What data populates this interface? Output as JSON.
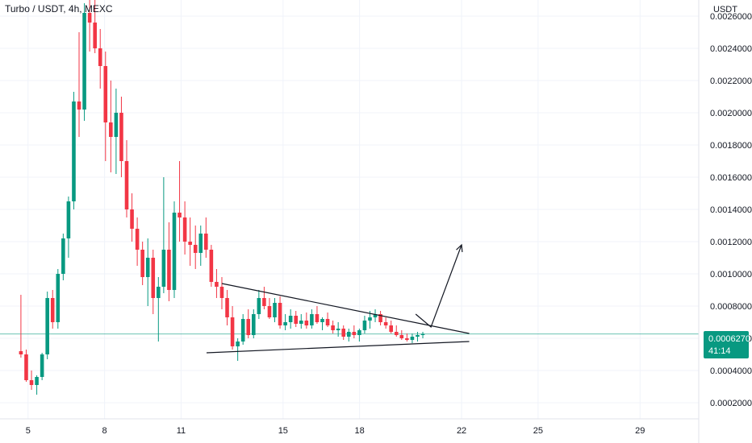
{
  "header": {
    "title": "Turbo / USDT, 4h, MEXC",
    "unit": "USDT"
  },
  "current": {
    "price": "0.0006270",
    "countdown": "41:14"
  },
  "colors": {
    "up": "#089981",
    "down": "#f23645",
    "grid": "#f0f3fa",
    "drawing": "#131722",
    "price_line": "#089981"
  },
  "chart_data": {
    "type": "candlestick",
    "title": "Turbo / USDT, 4h, MEXC",
    "ylabel": "USDT",
    "ylim": [
      0.0001,
      0.0027
    ],
    "xlim": [
      3.9,
      31.3
    ],
    "x_ticks": [
      {
        "day": 5,
        "label": "5"
      },
      {
        "day": 8,
        "label": "8"
      },
      {
        "day": 11,
        "label": "11"
      },
      {
        "day": 15,
        "label": "15"
      },
      {
        "day": 18,
        "label": "18"
      },
      {
        "day": 22,
        "label": "22"
      },
      {
        "day": 25,
        "label": "25"
      },
      {
        "day": 29,
        "label": "29"
      }
    ],
    "y_ticks": [
      "0.0002000",
      "0.0004000",
      "0.0006000",
      "0.0008000",
      "0.0010000",
      "0.0012000",
      "0.0014000",
      "0.0016000",
      "0.0018000",
      "0.0020000",
      "0.0022000",
      "0.0024000",
      "0.0026000"
    ],
    "y_tick_values": [
      0.0002,
      0.0004,
      0.0006,
      0.0008,
      0.001,
      0.0012,
      0.0014,
      0.0016,
      0.0018,
      0.002,
      0.0022,
      0.0024,
      0.0026
    ],
    "candles": [
      [
        0.00052,
        0.00087,
        0.00048,
        0.0005
      ],
      [
        0.0005,
        0.00053,
        0.00033,
        0.00034
      ],
      [
        0.00034,
        0.0004,
        0.00028,
        0.00031
      ],
      [
        0.00031,
        0.00037,
        0.00025,
        0.00036
      ],
      [
        0.00036,
        0.00051,
        0.00034,
        0.0005
      ],
      [
        0.0005,
        0.00089,
        0.00047,
        0.00085
      ],
      [
        0.00085,
        0.0009,
        0.00066,
        0.0007
      ],
      [
        0.0007,
        0.00103,
        0.00066,
        0.001
      ],
      [
        0.001,
        0.00125,
        0.00096,
        0.00122
      ],
      [
        0.00122,
        0.00148,
        0.0011,
        0.00145
      ],
      [
        0.00145,
        0.00213,
        0.0014,
        0.00207
      ],
      [
        0.00207,
        0.0025,
        0.00185,
        0.00202
      ],
      [
        0.00202,
        0.00268,
        0.00195,
        0.00262
      ],
      [
        0.00262,
        0.00275,
        0.00238,
        0.00256
      ],
      [
        0.00256,
        0.0027,
        0.00237,
        0.0024
      ],
      [
        0.0024,
        0.00252,
        0.00215,
        0.00229
      ],
      [
        0.00229,
        0.00238,
        0.0017,
        0.00194
      ],
      [
        0.00194,
        0.0022,
        0.00163,
        0.00185
      ],
      [
        0.00185,
        0.00215,
        0.00162,
        0.002
      ],
      [
        0.002,
        0.0021,
        0.0016,
        0.0017
      ],
      [
        0.0017,
        0.00183,
        0.00135,
        0.0014
      ],
      [
        0.0014,
        0.0015,
        0.0012,
        0.00128
      ],
      [
        0.00128,
        0.00135,
        0.00105,
        0.00115
      ],
      [
        0.00115,
        0.0012,
        0.00093,
        0.00098
      ],
      [
        0.00098,
        0.00122,
        0.0008,
        0.0011
      ],
      [
        0.0011,
        0.00115,
        0.00075,
        0.00085
      ],
      [
        0.00085,
        0.00098,
        0.00058,
        0.00092
      ],
      [
        0.00092,
        0.0016,
        0.00088,
        0.00115
      ],
      [
        0.00115,
        0.00132,
        0.00083,
        0.0009
      ],
      [
        0.0009,
        0.00145,
        0.00085,
        0.00138
      ],
      [
        0.00138,
        0.0017,
        0.0012,
        0.00135
      ],
      [
        0.00135,
        0.00145,
        0.00112,
        0.0012
      ],
      [
        0.0012,
        0.00135,
        0.00105,
        0.00118
      ],
      [
        0.00118,
        0.0013,
        0.00103,
        0.00113
      ],
      [
        0.00113,
        0.0013,
        0.00105,
        0.00125
      ],
      [
        0.00125,
        0.00135,
        0.0011,
        0.00115
      ],
      [
        0.00115,
        0.00118,
        0.00092,
        0.00095
      ],
      [
        0.00095,
        0.00103,
        0.00085,
        0.00092
      ],
      [
        0.00092,
        0.00098,
        0.00078,
        0.00085
      ],
      [
        0.00085,
        0.0009,
        0.00068,
        0.00073
      ],
      [
        0.00073,
        0.0008,
        0.00053,
        0.00055
      ],
      [
        0.00055,
        0.0006,
        0.00046,
        0.00058
      ],
      [
        0.00058,
        0.00075,
        0.00056,
        0.00072
      ],
      [
        0.00072,
        0.00078,
        0.0006,
        0.00062
      ],
      [
        0.00062,
        0.00078,
        0.0006,
        0.00075
      ],
      [
        0.00075,
        0.0009,
        0.00072,
        0.00085
      ],
      [
        0.00085,
        0.00092,
        0.00078,
        0.0008
      ],
      [
        0.0008,
        0.00085,
        0.00072,
        0.00073
      ],
      [
        0.00073,
        0.00085,
        0.0007,
        0.00082
      ],
      [
        0.00082,
        0.00086,
        0.00066,
        0.00068
      ],
      [
        0.00068,
        0.00075,
        0.00065,
        0.0007
      ],
      [
        0.0007,
        0.00078,
        0.00066,
        0.00074
      ],
      [
        0.00074,
        0.00077,
        0.00067,
        0.00069
      ],
      [
        0.00069,
        0.00075,
        0.00066,
        0.00071
      ],
      [
        0.00071,
        0.00076,
        0.00066,
        0.00068
      ],
      [
        0.00068,
        0.00078,
        0.00066,
        0.00075
      ],
      [
        0.00075,
        0.0008,
        0.00069,
        0.0007
      ],
      [
        0.0007,
        0.00073,
        0.00065,
        0.00072
      ],
      [
        0.00072,
        0.00076,
        0.00067,
        0.00068
      ],
      [
        0.00068,
        0.00071,
        0.00063,
        0.00065
      ],
      [
        0.00065,
        0.0007,
        0.00061,
        0.00066
      ],
      [
        0.00066,
        0.00068,
        0.00059,
        0.00061
      ],
      [
        0.00061,
        0.00066,
        0.00058,
        0.00064
      ],
      [
        0.00064,
        0.00068,
        0.0006,
        0.00062
      ],
      [
        0.00062,
        0.00066,
        0.00058,
        0.00065
      ],
      [
        0.00065,
        0.00074,
        0.00063,
        0.00071
      ],
      [
        0.00071,
        0.00077,
        0.00066,
        0.00073
      ],
      [
        0.00073,
        0.00078,
        0.0007,
        0.00075
      ],
      [
        0.00075,
        0.00077,
        0.00068,
        0.0007
      ],
      [
        0.0007,
        0.00073,
        0.00066,
        0.00068
      ],
      [
        0.00068,
        0.00071,
        0.00063,
        0.00064
      ],
      [
        0.00064,
        0.00068,
        0.00061,
        0.00062
      ],
      [
        0.00062,
        0.00065,
        0.00059,
        0.0006
      ],
      [
        0.0006,
        0.00063,
        0.00058,
        0.00059
      ],
      [
        0.00059,
        0.00063,
        0.00057,
        0.00061
      ],
      [
        0.00061,
        0.00064,
        0.00058,
        0.00062
      ],
      [
        0.00062,
        0.00064,
        0.0006,
        0.000627
      ]
    ],
    "drawings": {
      "triangle_upper": [
        [
          12.6,
          0.00094
        ],
        [
          22.3,
          0.00063
        ]
      ],
      "triangle_lower": [
        [
          12.0,
          0.00051
        ],
        [
          22.3,
          0.00058
        ]
      ],
      "projection_arrow": [
        [
          20.2,
          0.00075
        ],
        [
          20.8,
          0.00067
        ],
        [
          22.0,
          0.00118
        ]
      ]
    },
    "current_price": 0.000627
  }
}
